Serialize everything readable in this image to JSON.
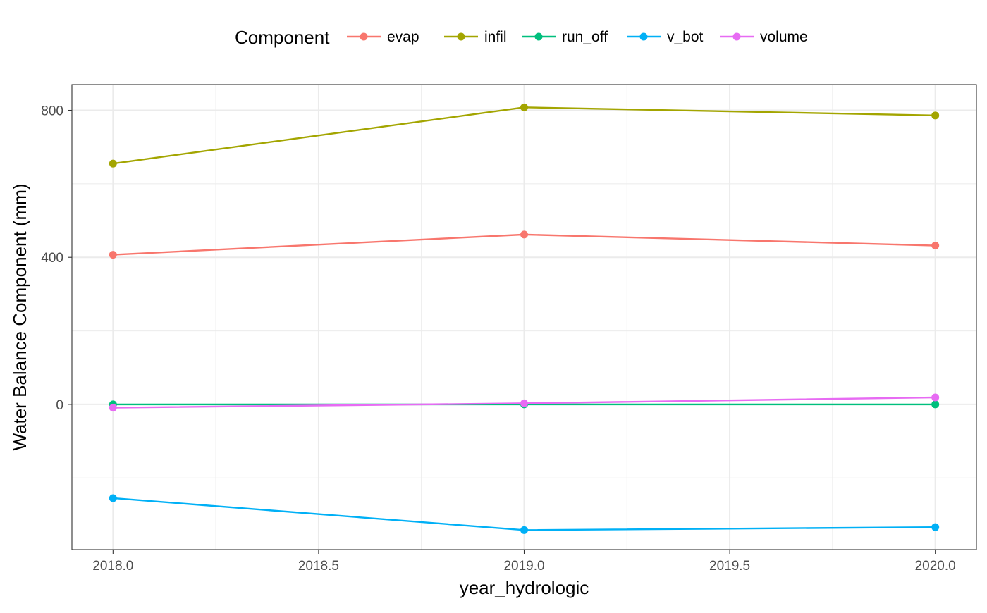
{
  "chart_data": {
    "type": "line",
    "title": "",
    "xlabel": "year_hydrologic",
    "ylabel": "Water Balance Component (mm)",
    "legend_title": "Component",
    "legend_position": "top",
    "grid": true,
    "xlim": [
      1917.9,
      2020.1
    ],
    "ylim": [
      -395,
      870
    ],
    "x_ticks": [
      2018.0,
      2018.5,
      2019.0,
      2019.5,
      2020.0
    ],
    "x_tick_labels": [
      "2018.0",
      "2018.5",
      "2019.0",
      "2019.5",
      "2020.0"
    ],
    "y_ticks": [
      0,
      400,
      800
    ],
    "y_tick_labels": [
      "0",
      "400",
      "800"
    ],
    "x": [
      2018,
      2019,
      2020
    ],
    "series": [
      {
        "name": "evap",
        "color": "#F8766D",
        "values": [
          407,
          462,
          432
        ]
      },
      {
        "name": "infil",
        "color": "#A3A500",
        "values": [
          655,
          808,
          786
        ]
      },
      {
        "name": "run_off",
        "color": "#00BF7D",
        "values": [
          0,
          0,
          0
        ]
      },
      {
        "name": "v_bot",
        "color": "#00B0F6",
        "values": [
          -255,
          -342,
          -334
        ]
      },
      {
        "name": "volume",
        "color": "#E76BF3",
        "values": [
          -9,
          3,
          19
        ]
      }
    ]
  }
}
